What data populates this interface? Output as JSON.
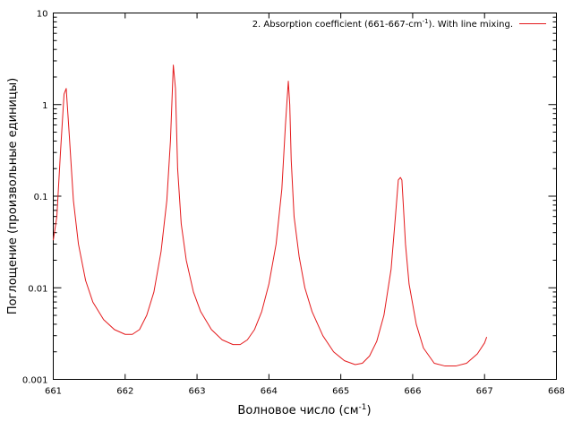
{
  "chart_data": {
    "type": "line",
    "title": "",
    "xlabel": "Волновое число (см",
    "xlabel_sup": "-1",
    "xlabel_end": ")",
    "ylabel": "Поглощение (произвольные единицы)",
    "xlim": [
      661,
      668
    ],
    "ylim": [
      0.001,
      10
    ],
    "yscale": "log",
    "grid": false,
    "legend_position": "top-right",
    "x_ticks": [
      "661",
      "662",
      "663",
      "664",
      "665",
      "666",
      "667",
      "668"
    ],
    "y_ticks": [
      "0.001",
      "0.01",
      "0.1",
      "1",
      "10"
    ],
    "legend": {
      "prefix": "2. Absorption coefficient (661-667-cm",
      "sup": "-1",
      "suffix": "). With line mixing."
    },
    "series": [
      {
        "color": "#e41a1c",
        "x": [
          661.0,
          661.05,
          661.1,
          661.15,
          661.18,
          661.22,
          661.28,
          661.35,
          661.45,
          661.55,
          661.7,
          661.85,
          662.0,
          662.1,
          662.2,
          662.3,
          662.4,
          662.5,
          662.58,
          662.63,
          662.67,
          662.7,
          662.73,
          662.78,
          662.85,
          662.95,
          663.05,
          663.2,
          663.35,
          663.5,
          663.6,
          663.7,
          663.8,
          663.9,
          664.0,
          664.1,
          664.18,
          664.23,
          664.27,
          664.29,
          664.31,
          664.35,
          664.42,
          664.5,
          664.6,
          664.75,
          664.9,
          665.05,
          665.2,
          665.3,
          665.4,
          665.5,
          665.6,
          665.7,
          665.76,
          665.8,
          665.83,
          665.85,
          665.87,
          665.9,
          665.95,
          666.05,
          666.15,
          666.3,
          666.45,
          666.6,
          666.75,
          666.9,
          667.0,
          667.03
        ],
        "y": [
          0.033,
          0.06,
          0.3,
          1.3,
          1.5,
          0.5,
          0.09,
          0.03,
          0.012,
          0.007,
          0.0045,
          0.0035,
          0.0031,
          0.0031,
          0.0035,
          0.005,
          0.009,
          0.025,
          0.09,
          0.4,
          2.7,
          1.5,
          0.2,
          0.05,
          0.02,
          0.009,
          0.0055,
          0.0035,
          0.0027,
          0.0024,
          0.0024,
          0.0027,
          0.0035,
          0.0055,
          0.011,
          0.03,
          0.12,
          0.6,
          1.8,
          1.0,
          0.25,
          0.06,
          0.022,
          0.01,
          0.0055,
          0.003,
          0.002,
          0.0016,
          0.00145,
          0.0015,
          0.0018,
          0.0026,
          0.005,
          0.016,
          0.06,
          0.15,
          0.16,
          0.15,
          0.08,
          0.03,
          0.011,
          0.004,
          0.0022,
          0.0015,
          0.0014,
          0.0014,
          0.0015,
          0.0019,
          0.0025,
          0.0029
        ]
      }
    ]
  }
}
